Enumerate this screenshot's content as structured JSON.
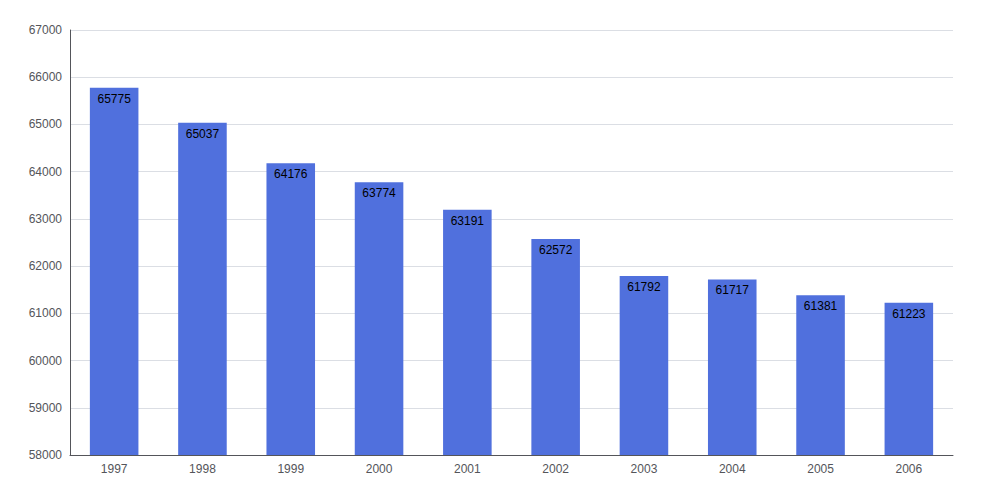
{
  "chart_data": {
    "type": "bar",
    "categories": [
      "1997",
      "1998",
      "1999",
      "2000",
      "2001",
      "2002",
      "2003",
      "2004",
      "2005",
      "2006"
    ],
    "values": [
      65775,
      65037,
      64176,
      63774,
      63191,
      62572,
      61792,
      61717,
      61381,
      61223
    ],
    "ylim": [
      58000,
      67000
    ],
    "yticks": [
      58000,
      59000,
      60000,
      61000,
      62000,
      63000,
      64000,
      65000,
      66000,
      67000
    ],
    "grid": true,
    "data_labels": true
  }
}
